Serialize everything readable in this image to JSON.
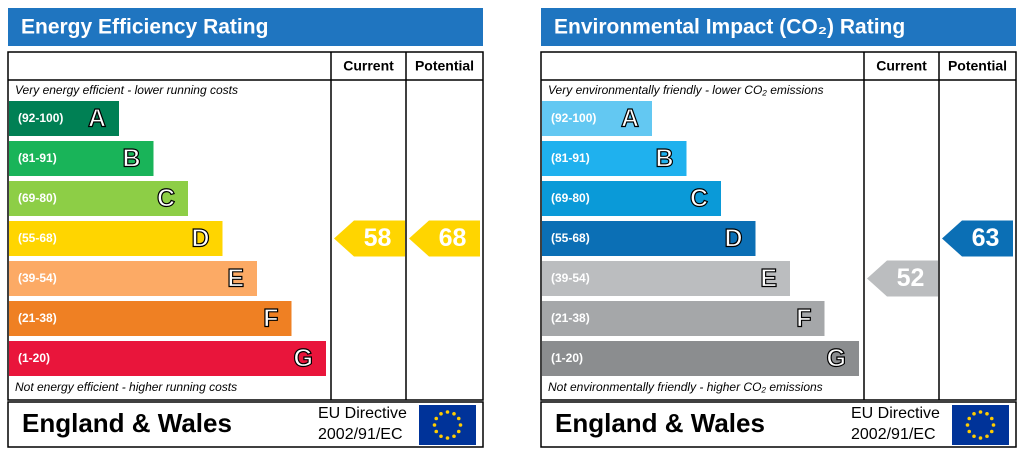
{
  "chart_data": [
    {
      "type": "epc",
      "title": "Energy Efficiency Rating",
      "columns": [
        "Current",
        "Potential"
      ],
      "top_note": "Very energy efficient - lower running costs",
      "bottom_note": "Not energy efficient - higher running costs",
      "bands": [
        {
          "range": "(92-100)",
          "letter": "A",
          "color": "#008054"
        },
        {
          "range": "(81-91)",
          "letter": "B",
          "color": "#19b459"
        },
        {
          "range": "(69-80)",
          "letter": "C",
          "color": "#8dce46"
        },
        {
          "range": "(55-68)",
          "letter": "D",
          "color": "#ffd500"
        },
        {
          "range": "(39-54)",
          "letter": "E",
          "color": "#fcaa65"
        },
        {
          "range": "(21-38)",
          "letter": "F",
          "color": "#ef8023"
        },
        {
          "range": "(1-20)",
          "letter": "G",
          "color": "#e9153b"
        }
      ],
      "current": 58,
      "potential": 68,
      "footer": {
        "region": "England & Wales",
        "directive": "EU Directive",
        "code": "2002/91/EC"
      }
    },
    {
      "type": "epc",
      "title": "Environmental Impact (CO₂) Rating",
      "columns": [
        "Current",
        "Potential"
      ],
      "top_note": "Very environmentally friendly - lower CO₂ emissions",
      "bottom_note": "Not environmentally friendly - higher CO₂ emissions",
      "bands": [
        {
          "range": "(92-100)",
          "letter": "A",
          "color": "#63c8f2"
        },
        {
          "range": "(81-91)",
          "letter": "B",
          "color": "#1fb1ee"
        },
        {
          "range": "(69-80)",
          "letter": "C",
          "color": "#0a9ad8"
        },
        {
          "range": "(55-68)",
          "letter": "D",
          "color": "#0b6fb5"
        },
        {
          "range": "(39-54)",
          "letter": "E",
          "color": "#bbbdbf"
        },
        {
          "range": "(21-38)",
          "letter": "F",
          "color": "#a5a7a9"
        },
        {
          "range": "(1-20)",
          "letter": "G",
          "color": "#8b8d8f"
        }
      ],
      "current": 52,
      "potential": 63,
      "footer": {
        "region": "England & Wales",
        "directive": "EU Directive",
        "code": "2002/91/EC"
      }
    }
  ]
}
